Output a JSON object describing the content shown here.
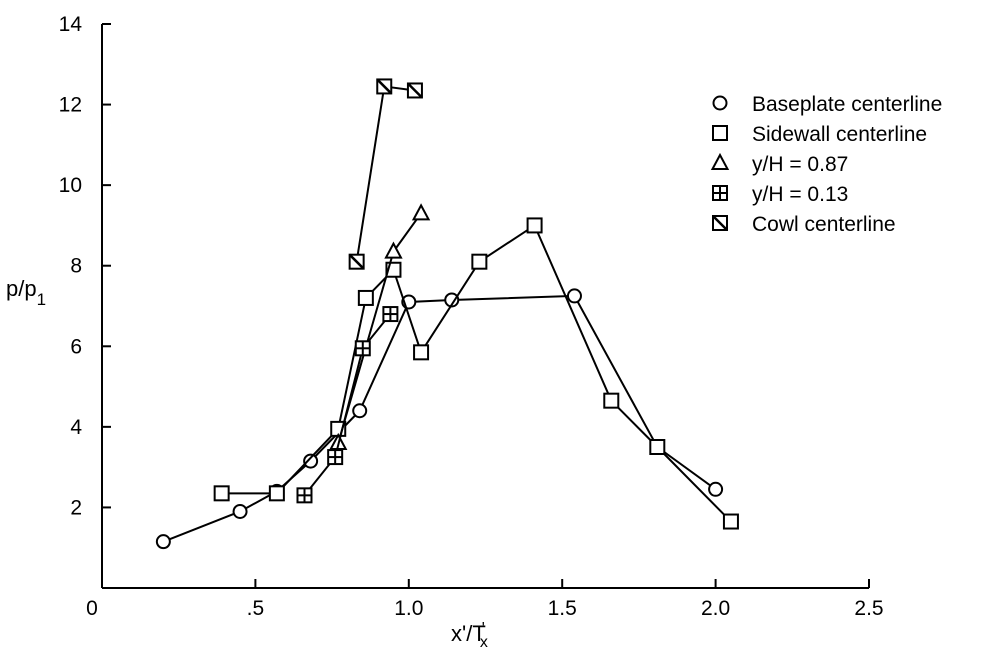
{
  "chart_data": {
    "type": "scatter",
    "title": "",
    "xlabel": "x'/T",
    "xlabel_sub": "x",
    "xlabel_sup": "'",
    "ylabel": "p/p",
    "ylabel_sub": "1",
    "xlim": [
      0,
      2.5
    ],
    "ylim": [
      0,
      14
    ],
    "x_ticks": [
      {
        "value": 0,
        "label": "0"
      },
      {
        "value": 0.5,
        "label": ".5"
      },
      {
        "value": 1.0,
        "label": "1.0"
      },
      {
        "value": 1.5,
        "label": "1.5"
      },
      {
        "value": 2.0,
        "label": "2.0"
      },
      {
        "value": 2.5,
        "label": "2.5"
      }
    ],
    "y_ticks": [
      {
        "value": 2,
        "label": "2"
      },
      {
        "value": 4,
        "label": "4"
      },
      {
        "value": 6,
        "label": "6"
      },
      {
        "value": 8,
        "label": "8"
      },
      {
        "value": 10,
        "label": "10"
      },
      {
        "value": 12,
        "label": "12"
      },
      {
        "value": 14,
        "label": "14"
      }
    ],
    "grid": false,
    "legend_position": "top-right",
    "series": [
      {
        "name": "Baseplate centerline",
        "marker": "circle",
        "points": [
          [
            0.2,
            1.15
          ],
          [
            0.45,
            1.9
          ],
          [
            0.57,
            2.4
          ],
          [
            0.68,
            3.15
          ],
          [
            0.84,
            4.4
          ],
          [
            1.0,
            7.1
          ],
          [
            1.14,
            7.15
          ],
          [
            1.54,
            7.25
          ],
          [
            1.81,
            3.5
          ],
          [
            2.0,
            2.45
          ]
        ]
      },
      {
        "name": "Sidewall centerline",
        "marker": "square",
        "points": [
          [
            0.39,
            2.35
          ],
          [
            0.57,
            2.35
          ],
          [
            0.77,
            3.95
          ],
          [
            0.86,
            7.2
          ],
          [
            0.95,
            7.9
          ],
          [
            1.04,
            5.85
          ],
          [
            1.23,
            8.1
          ],
          [
            1.41,
            9.0
          ],
          [
            1.66,
            4.65
          ],
          [
            1.81,
            3.5
          ],
          [
            2.05,
            1.65
          ]
        ]
      },
      {
        "name": "y/H = 0.87",
        "marker": "triangle",
        "points": [
          [
            0.77,
            3.6
          ],
          [
            0.95,
            8.35
          ],
          [
            1.04,
            9.3
          ]
        ]
      },
      {
        "name": "y/H = 0.13",
        "marker": "square-plus",
        "points": [
          [
            0.66,
            2.3
          ],
          [
            0.76,
            3.25
          ],
          [
            0.85,
            5.95
          ],
          [
            0.94,
            6.8
          ]
        ]
      },
      {
        "name": "Cowl centerline",
        "marker": "square-slash",
        "points": [
          [
            0.83,
            8.1
          ],
          [
            0.92,
            12.45
          ],
          [
            1.02,
            12.35
          ]
        ]
      }
    ]
  }
}
